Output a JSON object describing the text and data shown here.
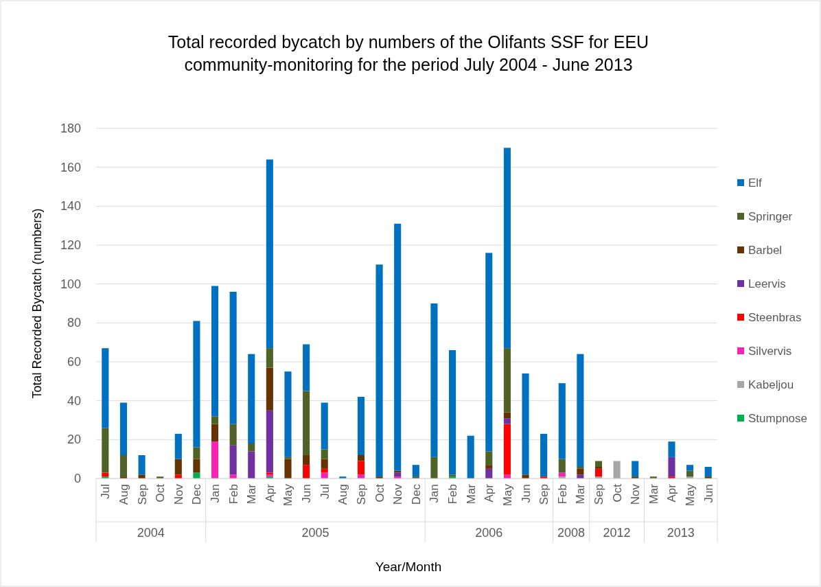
{
  "chart_data": {
    "type": "bar",
    "stacked": true,
    "title": "Total recorded bycatch by numbers of the Olifants SSF for EEU\ncommunity-monitoring for the period July 2004 - June 2013",
    "xlabel": "Year/Month",
    "ylabel": "Total Recorded Bycatch (numbers)",
    "categories": [
      "Jul",
      "Aug",
      "Sep",
      "Oct",
      "Nov",
      "Dec",
      "Jan",
      "Feb",
      "Mar",
      "Apr",
      "May",
      "Jun",
      "Jul",
      "Aug",
      "Sep",
      "Oct",
      "Nov",
      "Dec",
      "Jan",
      "Feb",
      "Mar",
      "Apr",
      "May",
      "Jun",
      "Sep",
      "Feb",
      "Mar",
      "Sep",
      "Oct",
      "Nov",
      "Mar",
      "Apr",
      "May",
      "Jun"
    ],
    "annotations": [
      "2004",
      "2005",
      "2006",
      "2008",
      "2012",
      "2013"
    ],
    "series": [
      {
        "name": "Stumpnose",
        "color": "#00b050",
        "values": [
          1,
          0,
          0,
          0,
          0,
          3,
          0,
          0,
          0,
          1,
          0,
          0,
          0,
          0,
          0,
          0,
          0,
          0,
          0,
          1,
          0,
          0,
          0,
          0,
          0,
          0,
          0,
          0,
          0,
          0,
          0,
          0,
          0,
          0
        ]
      },
      {
        "name": "Kabeljou",
        "color": "#a6a6a6",
        "values": [
          0,
          0,
          0,
          0,
          0,
          0,
          0,
          0,
          0,
          0,
          0,
          0,
          0,
          0,
          0,
          0,
          0,
          0,
          0,
          0,
          0,
          0,
          0,
          0,
          0,
          1,
          0,
          1,
          9,
          0,
          0,
          0,
          1,
          0
        ]
      },
      {
        "name": "Silvervis",
        "color": "#f524b4",
        "values": [
          0,
          0,
          0,
          0,
          0,
          0,
          19,
          2,
          0,
          1,
          0,
          0,
          3,
          0,
          2,
          0,
          1,
          0,
          0,
          0,
          0,
          0,
          2,
          0,
          0,
          2,
          0,
          0,
          0,
          0,
          0,
          0,
          0,
          0
        ]
      },
      {
        "name": "Steenbras",
        "color": "#ff0000",
        "values": [
          2,
          0,
          0,
          0,
          2,
          0,
          0,
          0,
          0,
          1,
          0,
          7,
          2,
          0,
          7,
          0,
          0,
          0,
          0,
          0,
          0,
          0,
          26,
          0,
          1,
          0,
          0,
          4,
          0,
          0,
          0,
          1,
          0,
          0
        ]
      },
      {
        "name": "Leervis",
        "color": "#7030a0",
        "values": [
          0,
          0,
          0,
          0,
          0,
          0,
          0,
          15,
          14,
          32,
          0,
          0,
          0,
          0,
          0,
          0,
          2,
          0,
          0,
          0,
          0,
          5,
          3,
          0,
          0,
          0,
          2,
          0,
          0,
          0,
          0,
          10,
          0,
          0
        ]
      },
      {
        "name": "Barbel",
        "color": "#663300",
        "values": [
          0,
          1,
          2,
          0,
          8,
          7,
          9,
          0,
          0,
          22,
          10,
          5,
          5,
          0,
          3,
          1,
          1,
          0,
          0,
          0,
          0,
          2,
          3,
          2,
          0,
          0,
          3,
          1,
          0,
          1,
          0,
          0,
          0,
          1
        ]
      },
      {
        "name": "Springer",
        "color": "#4f6228",
        "values": [
          23,
          11,
          0,
          1,
          0,
          6,
          4,
          11,
          4,
          10,
          1,
          33,
          5,
          0,
          0,
          0,
          0,
          1,
          11,
          1,
          0,
          7,
          33,
          0,
          0,
          7,
          1,
          3,
          0,
          0,
          1,
          0,
          3,
          0
        ]
      },
      {
        "name": "Elf",
        "color": "#0070c0",
        "values": [
          41,
          27,
          10,
          0,
          13,
          65,
          67,
          68,
          46,
          97,
          44,
          24,
          24,
          1,
          30,
          109,
          127,
          6,
          79,
          64,
          22,
          102,
          103,
          52,
          22,
          39,
          58,
          0,
          0,
          8,
          0,
          8,
          3,
          5
        ]
      }
    ],
    "ylim": [
      0,
      180
    ],
    "yticks": [
      0,
      20,
      40,
      60,
      80,
      100,
      120,
      140,
      160,
      180
    ],
    "grid": "y",
    "legend": "right"
  }
}
